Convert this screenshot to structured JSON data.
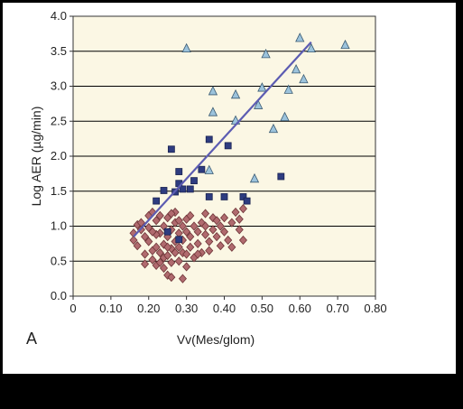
{
  "chart_data": {
    "type": "scatter",
    "panel_label": "A",
    "xlabel": "Vv(Mes/glom)",
    "ylabel": "Log AER (µg/min)",
    "xlim": [
      0,
      0.8
    ],
    "ylim": [
      0,
      4.0
    ],
    "x_ticks": [
      "0",
      "0.10",
      "0.20",
      "0.30",
      "0.40",
      "0.50",
      "0.60",
      "0.70",
      "0.80"
    ],
    "y_ticks": [
      "0.0",
      "0.5",
      "1.0",
      "1.5",
      "2.0",
      "2.5",
      "3.0",
      "3.5",
      "4.0"
    ],
    "grid": "horizontal",
    "plot_background": "#fbf7e4",
    "gridline_color": "#000000",
    "series": [
      {
        "marker": "triangle",
        "color": "#9cc3dc",
        "edge_color": "#3a5a72",
        "points": [
          [
            0.3,
            3.54
          ],
          [
            0.36,
            1.8
          ],
          [
            0.37,
            2.63
          ],
          [
            0.37,
            2.93
          ],
          [
            0.43,
            2.88
          ],
          [
            0.43,
            2.51
          ],
          [
            0.48,
            1.68
          ],
          [
            0.49,
            2.73
          ],
          [
            0.5,
            2.98
          ],
          [
            0.51,
            3.46
          ],
          [
            0.53,
            2.39
          ],
          [
            0.56,
            2.56
          ],
          [
            0.57,
            2.95
          ],
          [
            0.59,
            3.24
          ],
          [
            0.6,
            3.69
          ],
          [
            0.61,
            3.1
          ],
          [
            0.63,
            3.54
          ],
          [
            0.72,
            3.59
          ]
        ]
      },
      {
        "marker": "square",
        "color": "#2e3c80",
        "edge_color": "#1a2350",
        "points": [
          [
            0.22,
            1.36
          ],
          [
            0.24,
            1.51
          ],
          [
            0.25,
            0.92
          ],
          [
            0.26,
            2.1
          ],
          [
            0.27,
            1.49
          ],
          [
            0.28,
            1.78
          ],
          [
            0.28,
            1.61
          ],
          [
            0.29,
            1.53
          ],
          [
            0.31,
            1.53
          ],
          [
            0.32,
            1.65
          ],
          [
            0.34,
            1.81
          ],
          [
            0.36,
            2.24
          ],
          [
            0.36,
            1.42
          ],
          [
            0.4,
            1.42
          ],
          [
            0.41,
            2.15
          ],
          [
            0.45,
            1.42
          ],
          [
            0.46,
            1.36
          ],
          [
            0.55,
            1.71
          ],
          [
            0.28,
            0.81
          ]
        ]
      },
      {
        "marker": "diamond",
        "color": "#b06a6e",
        "edge_color": "#6e3538",
        "points": [
          [
            0.16,
            0.9
          ],
          [
            0.16,
            0.8
          ],
          [
            0.17,
            1.02
          ],
          [
            0.17,
            0.72
          ],
          [
            0.18,
            0.95
          ],
          [
            0.18,
            1.05
          ],
          [
            0.19,
            0.6
          ],
          [
            0.19,
            0.85
          ],
          [
            0.19,
            0.46
          ],
          [
            0.2,
            1.15
          ],
          [
            0.2,
            0.98
          ],
          [
            0.21,
            0.65
          ],
          [
            0.21,
            1.2
          ],
          [
            0.21,
            0.52
          ],
          [
            0.22,
            0.44
          ],
          [
            0.22,
            0.7
          ],
          [
            0.22,
            1.08
          ],
          [
            0.23,
            0.48
          ],
          [
            0.23,
            0.62
          ],
          [
            0.23,
            0.9
          ],
          [
            0.24,
            0.55
          ],
          [
            0.24,
            0.74
          ],
          [
            0.24,
            1.0
          ],
          [
            0.25,
            0.58
          ],
          [
            0.25,
            0.3
          ],
          [
            0.25,
            0.85
          ],
          [
            0.25,
            1.12
          ],
          [
            0.26,
            0.68
          ],
          [
            0.26,
            0.48
          ],
          [
            0.26,
            0.95
          ],
          [
            0.26,
            0.27
          ],
          [
            0.27,
            0.78
          ],
          [
            0.27,
            1.05
          ],
          [
            0.27,
            0.62
          ],
          [
            0.27,
            1.2
          ],
          [
            0.28,
            0.9
          ],
          [
            0.28,
            0.5
          ],
          [
            0.28,
            0.7
          ],
          [
            0.29,
            1.0
          ],
          [
            0.29,
            0.8
          ],
          [
            0.29,
            0.62
          ],
          [
            0.29,
            0.25
          ],
          [
            0.3,
            1.1
          ],
          [
            0.3,
            0.92
          ],
          [
            0.3,
            0.42
          ],
          [
            0.31,
            0.7
          ],
          [
            0.31,
            1.15
          ],
          [
            0.31,
            0.85
          ],
          [
            0.32,
            1.0
          ],
          [
            0.32,
            0.55
          ],
          [
            0.33,
            0.75
          ],
          [
            0.33,
            0.92
          ],
          [
            0.34,
            1.05
          ],
          [
            0.34,
            0.62
          ],
          [
            0.35,
            0.88
          ],
          [
            0.35,
            1.18
          ],
          [
            0.36,
            0.78
          ],
          [
            0.36,
            0.65
          ],
          [
            0.37,
            1.12
          ],
          [
            0.37,
            0.95
          ],
          [
            0.38,
            1.08
          ],
          [
            0.38,
            0.85
          ],
          [
            0.39,
            1.0
          ],
          [
            0.39,
            0.72
          ],
          [
            0.4,
            1.12
          ],
          [
            0.4,
            0.92
          ],
          [
            0.41,
            0.8
          ],
          [
            0.42,
            1.05
          ],
          [
            0.42,
            0.7
          ],
          [
            0.43,
            1.2
          ],
          [
            0.44,
            0.95
          ],
          [
            0.44,
            1.1
          ],
          [
            0.45,
            1.25
          ],
          [
            0.45,
            0.8
          ],
          [
            0.22,
            0.88
          ],
          [
            0.2,
            0.78
          ],
          [
            0.23,
            1.15
          ],
          [
            0.24,
            0.4
          ],
          [
            0.26,
            1.18
          ],
          [
            0.33,
            0.6
          ],
          [
            0.35,
            1.0
          ],
          [
            0.3,
            0.6
          ],
          [
            0.28,
            1.08
          ],
          [
            0.21,
            0.92
          ],
          [
            0.25,
            0.7
          ]
        ]
      }
    ],
    "trend_line": {
      "color": "#5c5cb2",
      "from": [
        0.16,
        0.85
      ],
      "to": [
        0.63,
        3.63
      ]
    }
  }
}
